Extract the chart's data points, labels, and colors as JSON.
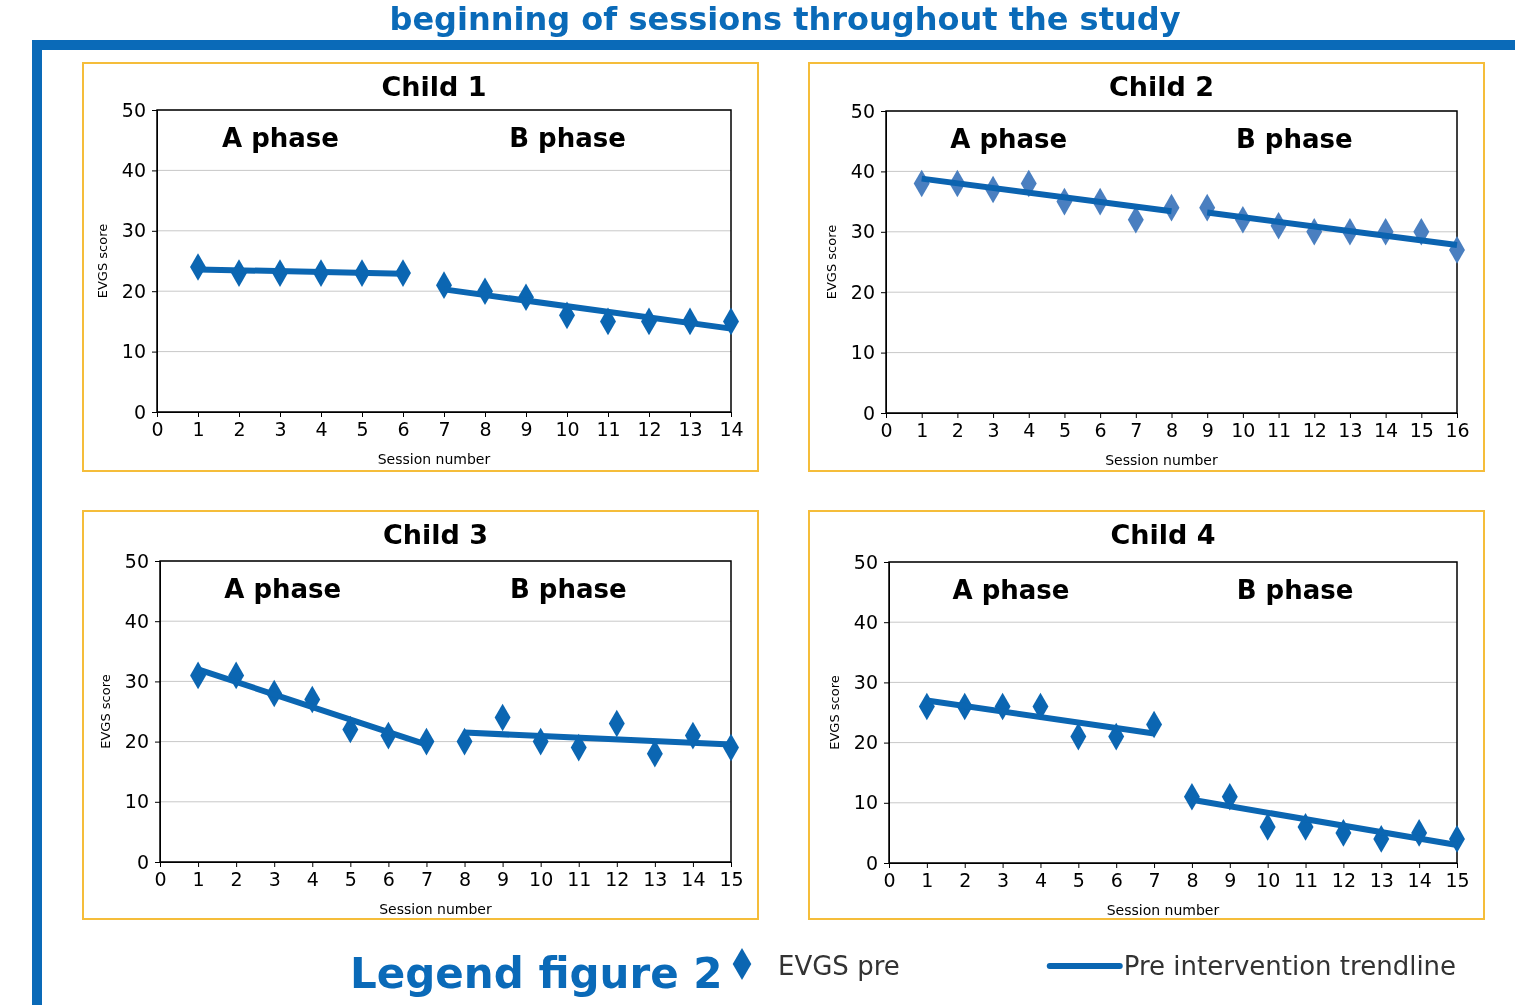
{
  "chart_data": [
    {
      "type": "other",
      "title": "beginning of sessions throughout the study"
    },
    {
      "type": "scatter",
      "title": "Child 1",
      "xlabel": "Session number",
      "ylabel": "EVGS score",
      "xlim": [
        0,
        14
      ],
      "xticks": [
        0,
        1,
        2,
        3,
        4,
        5,
        6,
        7,
        8,
        9,
        10,
        11,
        12,
        13,
        14
      ],
      "ylim": [
        0,
        50
      ],
      "yticks": [
        0,
        10,
        20,
        30,
        40,
        50
      ],
      "grid": "y",
      "annotations": [
        "A phase",
        "B phase"
      ],
      "series": [
        {
          "type": "scatter",
          "marker": "diamond",
          "color": "#0b66b2",
          "x": [
            1,
            2,
            3,
            4,
            5,
            6,
            7,
            8,
            9,
            10,
            11,
            12,
            13,
            14
          ],
          "values": [
            24,
            23,
            23,
            23,
            23,
            23,
            21,
            20,
            19,
            16,
            15,
            15,
            15,
            15
          ]
        },
        {
          "type": "line",
          "marker": "none",
          "line_style": "solid",
          "color": "#0b66b2",
          "x": [
            1,
            6,
            6.5,
            7,
            14
          ],
          "values": [
            23.6,
            22.9,
            null,
            20.3,
            13.8
          ]
        }
      ]
    },
    {
      "type": "scatter",
      "title": "Child 2",
      "xlabel": "Session number",
      "ylabel": "EVGS score",
      "xlim": [
        0,
        16
      ],
      "xticks": [
        0,
        1,
        2,
        3,
        4,
        5,
        6,
        7,
        8,
        9,
        10,
        11,
        12,
        13,
        14,
        15,
        16
      ],
      "ylim": [
        0,
        50
      ],
      "yticks": [
        0,
        10,
        20,
        30,
        40,
        50
      ],
      "grid": "y",
      "annotations": [
        "A phase",
        "B phase"
      ],
      "series": [
        {
          "type": "scatter",
          "marker": "diamond",
          "color": "#4a7fc0",
          "x": [
            1,
            2,
            3,
            4,
            5,
            6,
            7,
            8,
            9,
            10,
            11,
            12,
            13,
            14,
            15,
            16
          ],
          "values": [
            38,
            38,
            37,
            38,
            35,
            35,
            32,
            34,
            34,
            32,
            31,
            30,
            30,
            30,
            30,
            27
          ]
        },
        {
          "type": "line",
          "marker": "none",
          "line_style": "solid",
          "color": "#0b63b0",
          "x": [
            1,
            8,
            8.5,
            9,
            16
          ],
          "values": [
            38.8,
            33.4,
            null,
            33.2,
            27.8
          ]
        }
      ]
    },
    {
      "type": "scatter",
      "title": "Child 3",
      "xlabel": "Session number",
      "ylabel": "EVGS score",
      "xlim": [
        0,
        15
      ],
      "xticks": [
        0,
        1,
        2,
        3,
        4,
        5,
        6,
        7,
        8,
        9,
        10,
        11,
        12,
        13,
        14,
        15
      ],
      "ylim": [
        0,
        50
      ],
      "yticks": [
        0,
        10,
        20,
        30,
        40,
        50
      ],
      "grid": "y",
      "annotations": [
        "A phase",
        "B phase"
      ],
      "series": [
        {
          "type": "scatter",
          "marker": "diamond",
          "color": "#0b66b2",
          "x": [
            1,
            2,
            3,
            4,
            5,
            6,
            7,
            8,
            9,
            10,
            11,
            12,
            13,
            14,
            15
          ],
          "values": [
            31,
            31,
            28,
            27,
            22,
            21,
            20,
            20,
            24,
            20,
            19,
            23,
            18,
            21,
            19
          ]
        },
        {
          "type": "line",
          "marker": "none",
          "line_style": "solid",
          "color": "#0b66b2",
          "x": [
            1,
            7,
            7.5,
            8,
            15
          ],
          "values": [
            32,
            19.5,
            null,
            21.5,
            19.5
          ]
        }
      ]
    },
    {
      "type": "scatter",
      "title": "Child 4",
      "xlabel": "Session number",
      "ylabel": "EVGS score",
      "xlim": [
        0,
        15
      ],
      "xticks": [
        0,
        1,
        2,
        3,
        4,
        5,
        6,
        7,
        8,
        9,
        10,
        11,
        12,
        13,
        14,
        15
      ],
      "ylim": [
        0,
        50
      ],
      "yticks": [
        0,
        10,
        20,
        30,
        40,
        50
      ],
      "grid": "y",
      "annotations": [
        "A phase",
        "B phase"
      ],
      "legend": "bottom",
      "legend_title": "Legend figure 2",
      "series": [
        {
          "type": "scatter",
          "name": "EVGS pre",
          "marker": "diamond",
          "color": "#0b66b2",
          "x": [
            1,
            2,
            3,
            4,
            5,
            6,
            7,
            8,
            9,
            10,
            11,
            12,
            13,
            14,
            15
          ],
          "values": [
            26,
            26,
            26,
            26,
            21,
            21,
            23,
            11,
            11,
            6,
            6,
            5,
            4,
            5,
            4
          ]
        },
        {
          "type": "line",
          "name": "Pre intervention trendline",
          "marker": "none",
          "line_style": "solid",
          "color": "#0b66b2",
          "x": [
            1,
            7,
            7.5,
            8,
            15
          ],
          "values": [
            27,
            21.5,
            null,
            10.5,
            3
          ]
        }
      ]
    }
  ]
}
